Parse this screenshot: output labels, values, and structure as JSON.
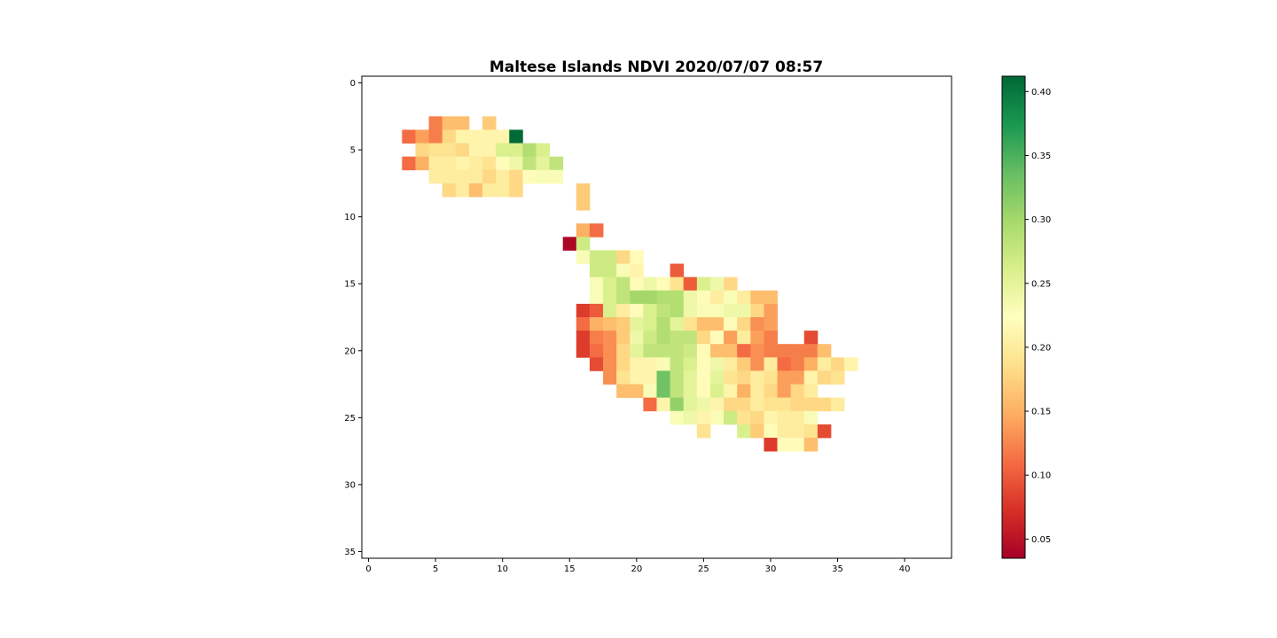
{
  "chart_data": {
    "type": "heatmap",
    "title": "Maltese Islands NDVI 2020/07/07 08:57",
    "xlabel": "",
    "ylabel": "",
    "xlim": [
      -0.5,
      43.5
    ],
    "ylim": [
      35.5,
      -0.5
    ],
    "x_ticks": [
      0,
      5,
      10,
      15,
      20,
      25,
      30,
      35,
      40
    ],
    "y_ticks": [
      0,
      5,
      10,
      15,
      20,
      25,
      30,
      35
    ],
    "grid": false,
    "colormap": "RdYlGn",
    "colorbar": {
      "min": 0.035,
      "max": 0.412,
      "ticks": [
        "0.05",
        "0.10",
        "0.15",
        "0.20",
        "0.25",
        "0.30",
        "0.35",
        "0.40"
      ]
    },
    "cells": [
      {
        "row": 3,
        "x0": 5,
        "values": [
          0.12,
          0.16,
          0.16
        ]
      },
      {
        "row": 3,
        "x0": 9,
        "values": [
          0.17
        ]
      },
      {
        "row": 4,
        "x0": 3,
        "values": [
          0.11,
          0.14,
          0.12,
          0.18,
          0.21,
          0.21,
          0.21,
          0.21
        ]
      },
      {
        "row": 4,
        "x0": 11,
        "values": [
          0.41
        ]
      },
      {
        "row": 5,
        "x0": 4,
        "values": [
          0.18,
          0.19,
          0.19,
          0.18,
          0.21,
          0.21,
          0.26,
          0.26,
          0.29,
          0.26
        ]
      },
      {
        "row": 6,
        "x0": 3,
        "values": [
          0.11,
          0.15,
          0.2,
          0.2,
          0.21,
          0.2,
          0.19,
          0.22,
          0.24,
          0.28,
          0.25,
          0.28
        ]
      },
      {
        "row": 7,
        "x0": 5,
        "values": [
          0.2,
          0.2,
          0.2,
          0.2,
          0.18,
          0.2,
          0.18,
          0.22,
          0.23,
          0.23
        ]
      },
      {
        "row": 8,
        "x0": 6,
        "values": [
          0.18,
          0.2,
          0.16,
          0.2,
          0.2,
          0.18
        ]
      },
      {
        "row": 8,
        "x0": 16,
        "values": [
          0.17
        ]
      },
      {
        "row": 9,
        "x0": 16,
        "values": [
          0.17
        ]
      },
      {
        "row": 11,
        "x0": 16,
        "values": [
          0.15,
          0.11
        ]
      },
      {
        "row": 12,
        "x0": 15,
        "values": [
          0.04,
          0.27
        ]
      },
      {
        "row": 13,
        "x0": 16,
        "values": [
          0.23,
          0.27,
          0.27,
          0.18,
          0.22
        ]
      },
      {
        "row": 14,
        "x0": 17,
        "values": [
          0.27,
          0.27,
          0.23,
          0.21
        ]
      },
      {
        "row": 14,
        "x0": 23,
        "values": [
          0.1
        ]
      },
      {
        "row": 15,
        "x0": 17,
        "values": [
          0.23,
          0.26,
          0.28,
          0.22,
          0.24,
          0.22,
          0.19,
          0.1,
          0.26,
          0.24,
          0.18
        ]
      },
      {
        "row": 16,
        "x0": 17,
        "values": [
          0.23,
          0.26,
          0.28,
          0.3,
          0.3,
          0.29,
          0.29,
          0.24,
          0.22,
          0.2,
          0.23,
          0.2,
          0.16,
          0.16
        ]
      },
      {
        "row": 17,
        "x0": 16,
        "values": [
          0.08,
          0.1,
          0.26,
          0.2,
          0.22,
          0.26,
          0.28,
          0.29,
          0.24,
          0.23,
          0.23,
          0.24,
          0.24,
          0.18,
          0.14
        ]
      },
      {
        "row": 18,
        "x0": 16,
        "values": [
          0.11,
          0.15,
          0.16,
          0.17,
          0.25,
          0.26,
          0.29,
          0.25,
          0.19,
          0.16,
          0.16,
          0.22,
          0.18,
          0.13,
          0.14
        ]
      },
      {
        "row": 19,
        "x0": 16,
        "values": [
          0.08,
          0.12,
          0.13,
          0.17,
          0.24,
          0.27,
          0.29,
          0.28,
          0.28,
          0.18,
          0.22,
          0.14,
          0.2,
          0.14,
          0.12
        ]
      },
      {
        "row": 19,
        "x0": 33,
        "values": [
          0.09
        ]
      },
      {
        "row": 20,
        "x0": 16,
        "values": [
          0.08,
          0.11,
          0.13,
          0.18,
          0.25,
          0.28,
          0.28,
          0.28,
          0.27,
          0.22,
          0.16,
          0.16,
          0.11,
          0.13,
          0.12,
          0.12,
          0.12,
          0.12,
          0.16
        ]
      },
      {
        "row": 21,
        "x0": 17,
        "values": [
          0.09,
          0.13,
          0.18,
          0.21,
          0.21,
          0.23,
          0.28,
          0.26,
          0.22,
          0.24,
          0.2,
          0.17,
          0.13,
          0.2,
          0.11,
          0.12,
          0.15,
          0.2,
          0.18,
          0.21
        ]
      },
      {
        "row": 22,
        "x0": 18,
        "values": [
          0.13,
          0.19,
          0.21,
          0.21,
          0.33,
          0.28,
          0.25,
          0.22,
          0.25,
          0.19,
          0.18,
          0.2,
          0.19,
          0.14,
          0.14,
          0.21,
          0.18,
          0.19
        ]
      },
      {
        "row": 23,
        "x0": 19,
        "values": [
          0.16,
          0.16,
          0.23,
          0.33,
          0.28,
          0.25,
          0.22,
          0.26,
          0.21,
          0.15,
          0.2,
          0.18,
          0.14,
          0.18,
          0.2
        ]
      },
      {
        "row": 24,
        "x0": 21,
        "values": [
          0.11,
          0.21,
          0.31,
          0.25,
          0.24,
          0.21,
          0.18,
          0.18,
          0.2,
          0.19,
          0.19,
          0.18,
          0.18,
          0.18,
          0.2
        ]
      },
      {
        "row": 25,
        "x0": 23,
        "values": [
          0.23,
          0.24,
          0.21,
          0.23,
          0.27,
          0.19,
          0.18,
          0.21,
          0.2,
          0.2,
          0.23
        ]
      },
      {
        "row": 26,
        "x0": 25,
        "values": [
          0.19
        ]
      },
      {
        "row": 26,
        "x0": 28,
        "values": [
          0.26,
          0.17,
          0.22,
          0.2,
          0.2,
          0.19,
          0.09
        ]
      },
      {
        "row": 27,
        "x0": 30,
        "values": [
          0.08,
          0.22,
          0.22,
          0.16
        ]
      }
    ]
  }
}
